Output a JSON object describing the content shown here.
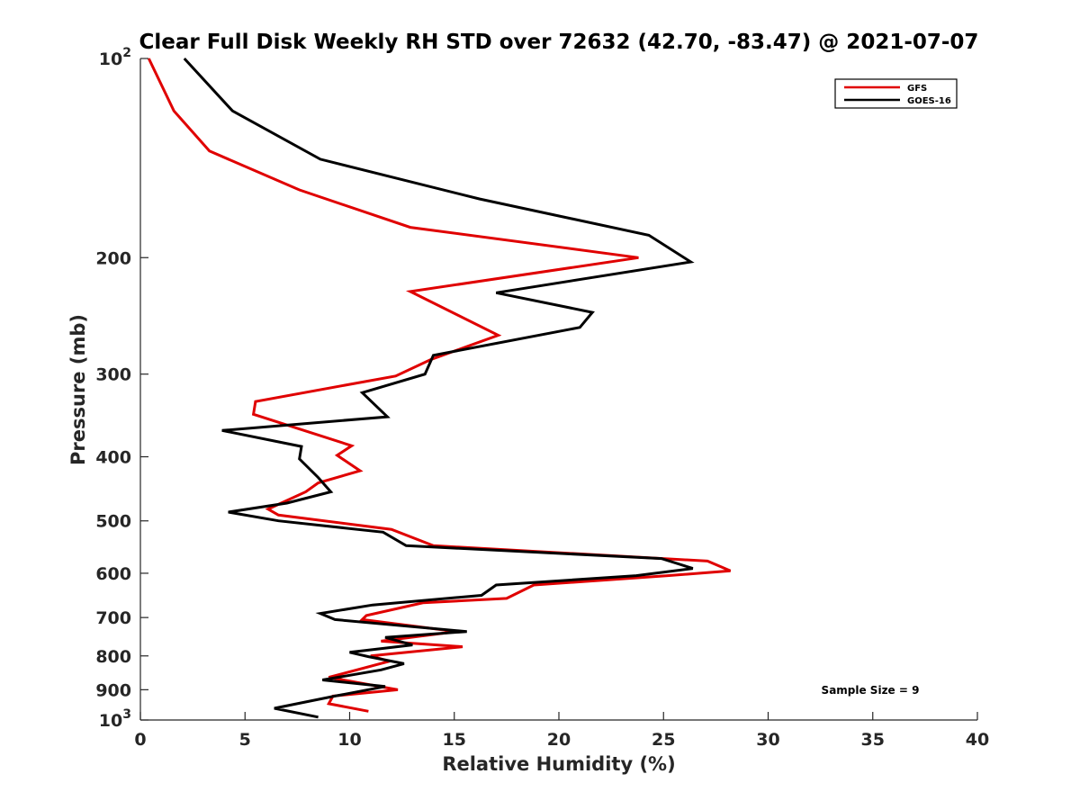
{
  "chart_data": {
    "type": "line",
    "title": "Clear Full Disk Weekly RH STD over 72632 (42.70, -83.47) @ 2021-07-07",
    "xlabel": "Relative Humidity (%)",
    "ylabel": "Pressure (mb)",
    "xlim": [
      0,
      40
    ],
    "ylim": [
      100,
      1000
    ],
    "yscale": "log",
    "y_reversed": true,
    "grid": false,
    "legend_position": "top-right",
    "x_ticks": [
      "0",
      "5",
      "10",
      "15",
      "20",
      "25",
      "30",
      "35",
      "40"
    ],
    "y_ticks": [
      {
        "value": 100,
        "base": "10",
        "exp": "2"
      },
      {
        "value": 200,
        "label": "200"
      },
      {
        "value": 300,
        "label": "300"
      },
      {
        "value": 400,
        "label": "400"
      },
      {
        "value": 500,
        "label": "500"
      },
      {
        "value": 600,
        "label": "600"
      },
      {
        "value": 700,
        "label": "700"
      },
      {
        "value": 800,
        "label": "800"
      },
      {
        "value": 900,
        "label": "900"
      },
      {
        "value": 1000,
        "base": "10",
        "exp": "3"
      }
    ],
    "annotation": "Sample Size = 9",
    "series": [
      {
        "name": "GFS",
        "color": "#e00000",
        "x": [
          0.4,
          1.6,
          3.3,
          7.6,
          12.9,
          23.8,
          12.9,
          17.1,
          13.9,
          12.2,
          5.5,
          5.4,
          10.1,
          9.4,
          10.5,
          8.5,
          7.9,
          6.1,
          6.6,
          12.0,
          14.0,
          27.1,
          28.2,
          25.2,
          18.8,
          17.5,
          13.5,
          10.8,
          10.6,
          15.1,
          11.5,
          15.4,
          11.0,
          11.9,
          9.0,
          12.3,
          9.2,
          9.0,
          10.9
        ],
        "y": [
          100,
          120,
          138,
          158,
          180,
          200,
          225,
          262,
          285,
          302,
          330,
          345,
          385,
          398,
          420,
          438,
          452,
          480,
          490,
          515,
          545,
          575,
          595,
          605,
          625,
          655,
          665,
          695,
          705,
          735,
          760,
          775,
          800,
          815,
          862,
          900,
          920,
          945,
          970
        ]
      },
      {
        "name": "GOES-16",
        "color": "#000000",
        "x": [
          2.1,
          4.4,
          8.6,
          16.2,
          24.3,
          26.3,
          17.0,
          21.6,
          21.0,
          14.0,
          13.6,
          10.6,
          11.8,
          3.9,
          7.7,
          7.6,
          8.5,
          9.1,
          7.0,
          4.2,
          6.6,
          11.6,
          12.7,
          24.9,
          26.4,
          23.7,
          17.0,
          16.3,
          11.1,
          8.6,
          9.3,
          15.6,
          11.7,
          13.0,
          10.0,
          10.9,
          12.6,
          11.5,
          8.7,
          11.7,
          9.3,
          6.4,
          8.5
        ],
        "y": [
          100,
          120,
          142,
          163,
          185,
          203,
          226,
          242,
          255,
          281,
          300,
          320,
          348,
          365,
          386,
          403,
          430,
          452,
          470,
          485,
          500,
          520,
          545,
          570,
          590,
          605,
          625,
          648,
          670,
          690,
          705,
          735,
          750,
          770,
          790,
          802,
          822,
          840,
          870,
          890,
          920,
          960,
          990
        ]
      }
    ]
  }
}
